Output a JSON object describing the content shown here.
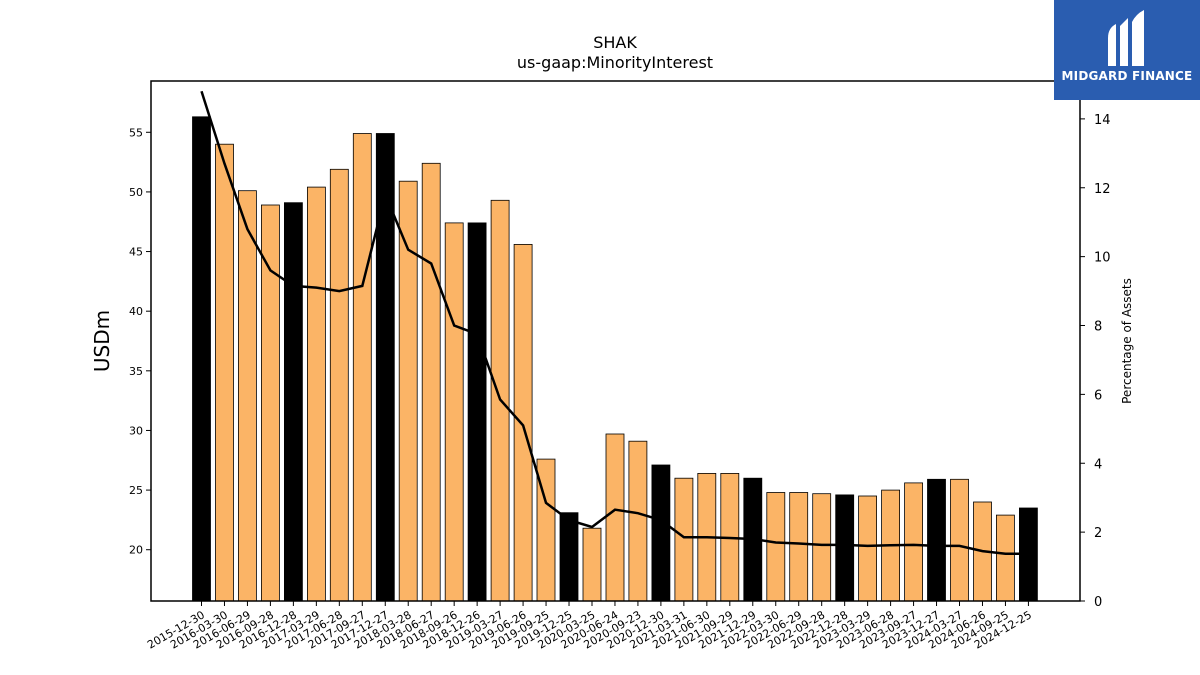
{
  "chart_data": {
    "type": "bar",
    "title": "SHAK",
    "subtitle": "us-gaap:MinorityInterest",
    "ylabel": "USDm",
    "y2label": "Percentage of Assets",
    "ylim": [
      15.7,
      59.3
    ],
    "y2lim": [
      0,
      15.1
    ],
    "yticks": [
      20,
      25,
      30,
      35,
      40,
      45,
      50,
      55
    ],
    "y2ticks": [
      0,
      2,
      4,
      6,
      8,
      10,
      12,
      14
    ],
    "categories": [
      "2015-12-30",
      "2016-03-30",
      "2016-06-29",
      "2016-09-28",
      "2016-12-28",
      "2017-03-29",
      "2017-06-28",
      "2017-09-27",
      "2017-12-27",
      "2018-03-28",
      "2018-06-27",
      "2018-09-26",
      "2018-12-26",
      "2019-03-27",
      "2019-06-26",
      "2019-09-25",
      "2019-12-25",
      "2020-03-25",
      "2020-06-24",
      "2020-09-23",
      "2020-12-30",
      "2021-03-31",
      "2021-06-30",
      "2021-09-29",
      "2021-12-29",
      "2022-03-30",
      "2022-06-29",
      "2022-09-28",
      "2022-12-28",
      "2023-03-29",
      "2023-06-28",
      "2023-09-27",
      "2023-12-27",
      "2024-03-27",
      "2024-06-26",
      "2024-09-25",
      "2024-12-25"
    ],
    "series": [
      {
        "type": "bar",
        "values": [
          56.3,
          54.0,
          50.1,
          48.9,
          49.1,
          50.4,
          51.9,
          54.9,
          54.9,
          50.9,
          52.4,
          47.4,
          47.4,
          49.3,
          45.6,
          27.6,
          23.1,
          21.8,
          29.7,
          29.1,
          27.1,
          26.0,
          26.4,
          26.4,
          26.0,
          24.8,
          24.8,
          24.7,
          24.6,
          24.5,
          25.0,
          25.6,
          25.9,
          25.9,
          24.0,
          22.9,
          23.5
        ],
        "highlight": [
          true,
          false,
          false,
          false,
          true,
          false,
          false,
          false,
          true,
          false,
          false,
          false,
          true,
          false,
          false,
          false,
          true,
          false,
          false,
          false,
          true,
          false,
          false,
          false,
          true,
          false,
          false,
          false,
          true,
          false,
          false,
          false,
          true,
          false,
          false,
          false,
          true
        ],
        "color": "#fbb466",
        "highlight_color": "#000000"
      },
      {
        "type": "line",
        "axis": "right",
        "values": [
          14.8,
          12.7,
          10.8,
          9.6,
          9.15,
          9.1,
          9.0,
          9.15,
          11.8,
          10.2,
          9.8,
          8.0,
          7.75,
          5.85,
          5.1,
          2.85,
          2.35,
          2.15,
          2.65,
          2.55,
          2.35,
          1.85,
          1.85,
          1.83,
          1.8,
          1.7,
          1.67,
          1.63,
          1.63,
          1.6,
          1.62,
          1.63,
          1.6,
          1.6,
          1.45,
          1.37,
          1.37
        ],
        "color": "#000000"
      }
    ],
    "grid": false
  },
  "logo": {
    "text": "MIDGARD FINANCE",
    "background": "#2a5db0"
  }
}
